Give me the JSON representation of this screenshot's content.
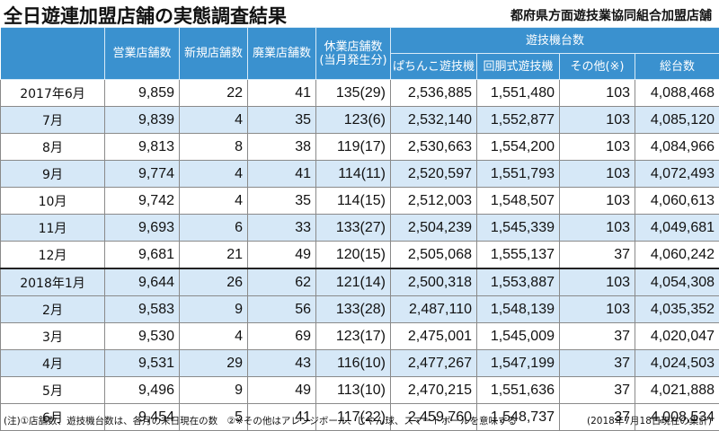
{
  "header": {
    "title": "全日遊連加盟店舗の実態調査結果",
    "subtitle": "都府県方面遊技業協同組合加盟店舗"
  },
  "columns": {
    "stores": "営業店舗数",
    "new": "新規店舗数",
    "closed": "廃業店舗数",
    "suspended_line1": "休業店舗数",
    "suspended_line2": "(当月発生分)",
    "machines_group": "遊技機台数",
    "pachinko": "ぱちんこ遊技機",
    "slot": "回胴式遊技機",
    "other": "その他(※)",
    "total": "総台数"
  },
  "rows": [
    {
      "month": "2017年6月",
      "stores": "9,859",
      "new": "22",
      "closed": "41",
      "suspended": "135(29)",
      "pachinko": "2,536,885",
      "slot": "1,551,480",
      "other": "103",
      "total": "4,088,468"
    },
    {
      "month": "7月",
      "stores": "9,839",
      "new": "4",
      "closed": "35",
      "suspended": "123(6)",
      "pachinko": "2,532,140",
      "slot": "1,552,877",
      "other": "103",
      "total": "4,085,120"
    },
    {
      "month": "8月",
      "stores": "9,813",
      "new": "8",
      "closed": "38",
      "suspended": "119(17)",
      "pachinko": "2,530,663",
      "slot": "1,554,200",
      "other": "103",
      "total": "4,084,966"
    },
    {
      "month": "9月",
      "stores": "9,774",
      "new": "4",
      "closed": "41",
      "suspended": "114(11)",
      "pachinko": "2,520,597",
      "slot": "1,551,793",
      "other": "103",
      "total": "4,072,493"
    },
    {
      "month": "10月",
      "stores": "9,742",
      "new": "4",
      "closed": "35",
      "suspended": "114(15)",
      "pachinko": "2,512,003",
      "slot": "1,548,507",
      "other": "103",
      "total": "4,060,613"
    },
    {
      "month": "11月",
      "stores": "9,693",
      "new": "6",
      "closed": "33",
      "suspended": "133(27)",
      "pachinko": "2,504,239",
      "slot": "1,545,339",
      "other": "103",
      "total": "4,049,681"
    },
    {
      "month": "12月",
      "stores": "9,681",
      "new": "21",
      "closed": "49",
      "suspended": "120(15)",
      "pachinko": "2,505,068",
      "slot": "1,555,137",
      "other": "37",
      "total": "4,060,242"
    },
    {
      "month": "2018年1月",
      "stores": "9,644",
      "new": "26",
      "closed": "62",
      "suspended": "121(14)",
      "pachinko": "2,500,318",
      "slot": "1,553,887",
      "other": "103",
      "total": "4,054,308"
    },
    {
      "month": "2月",
      "stores": "9,583",
      "new": "9",
      "closed": "56",
      "suspended": "133(28)",
      "pachinko": "2,487,110",
      "slot": "1,548,139",
      "other": "103",
      "total": "4,035,352"
    },
    {
      "month": "3月",
      "stores": "9,530",
      "new": "4",
      "closed": "69",
      "suspended": "123(17)",
      "pachinko": "2,475,001",
      "slot": "1,545,009",
      "other": "37",
      "total": "4,020,047"
    },
    {
      "month": "4月",
      "stores": "9,531",
      "new": "29",
      "closed": "43",
      "suspended": "116(10)",
      "pachinko": "2,477,267",
      "slot": "1,547,199",
      "other": "37",
      "total": "4,024,503"
    },
    {
      "month": "5月",
      "stores": "9,496",
      "new": "9",
      "closed": "49",
      "suspended": "113(10)",
      "pachinko": "2,470,215",
      "slot": "1,551,636",
      "other": "37",
      "total": "4,021,888"
    },
    {
      "month": "6月",
      "stores": "9,454",
      "new": "5",
      "closed": "41",
      "suspended": "117(22)",
      "pachinko": "2,459,760",
      "slot": "1,548,737",
      "other": "37",
      "total": "4,008,534"
    }
  ],
  "footer": {
    "note": "(注)①店舗数、遊技機台数は、各月の末日現在の数　②※その他はアレンジボール、じやん球、スマートボールを意味する",
    "date_note": "(2018年7月18日現在の集計)"
  },
  "colors": {
    "header_blue": "#3a91cf",
    "row_shade": "#d6e8f7"
  },
  "chart_data": {
    "type": "table",
    "title": "全日遊連加盟店舗の実態調査結果",
    "subtitle": "都府県方面遊技業協同組合加盟店舗",
    "columns": [
      "",
      "営業店舗数",
      "新規店舗数",
      "廃業店舗数",
      "休業店舗数(当月発生分)",
      "ぱちんこ遊技機",
      "回胴式遊技機",
      "その他(※)",
      "総台数"
    ],
    "rows": [
      [
        "2017年6月",
        "9,859",
        "22",
        "41",
        "135(29)",
        "2,536,885",
        "1,551,480",
        "103",
        "4,088,468"
      ],
      [
        "7月",
        "9,839",
        "4",
        "35",
        "123(6)",
        "2,532,140",
        "1,552,877",
        "103",
        "4,085,120"
      ],
      [
        "8月",
        "9,813",
        "8",
        "38",
        "119(17)",
        "2,530,663",
        "1,554,200",
        "103",
        "4,084,966"
      ],
      [
        "9月",
        "9,774",
        "4",
        "41",
        "114(11)",
        "2,520,597",
        "1,551,793",
        "103",
        "4,072,493"
      ],
      [
        "10月",
        "9,742",
        "4",
        "35",
        "114(15)",
        "2,512,003",
        "1,548,507",
        "103",
        "4,060,613"
      ],
      [
        "11月",
        "9,693",
        "6",
        "33",
        "133(27)",
        "2,504,239",
        "1,545,339",
        "103",
        "4,049,681"
      ],
      [
        "12月",
        "9,681",
        "21",
        "49",
        "120(15)",
        "2,505,068",
        "1,555,137",
        "37",
        "4,060,242"
      ],
      [
        "2018年1月",
        "9,644",
        "26",
        "62",
        "121(14)",
        "2,500,318",
        "1,553,887",
        "103",
        "4,054,308"
      ],
      [
        "2月",
        "9,583",
        "9",
        "56",
        "133(28)",
        "2,487,110",
        "1,548,139",
        "103",
        "4,035,352"
      ],
      [
        "3月",
        "9,530",
        "4",
        "69",
        "123(17)",
        "2,475,001",
        "1,545,009",
        "37",
        "4,020,047"
      ],
      [
        "4月",
        "9,531",
        "29",
        "43",
        "116(10)",
        "2,477,267",
        "1,547,199",
        "37",
        "4,024,503"
      ],
      [
        "5月",
        "9,496",
        "9",
        "49",
        "113(10)",
        "2,470,215",
        "1,551,636",
        "37",
        "4,021,888"
      ],
      [
        "6月",
        "9,454",
        "5",
        "41",
        "117(22)",
        "2,459,760",
        "1,548,737",
        "37",
        "4,008,534"
      ]
    ]
  }
}
